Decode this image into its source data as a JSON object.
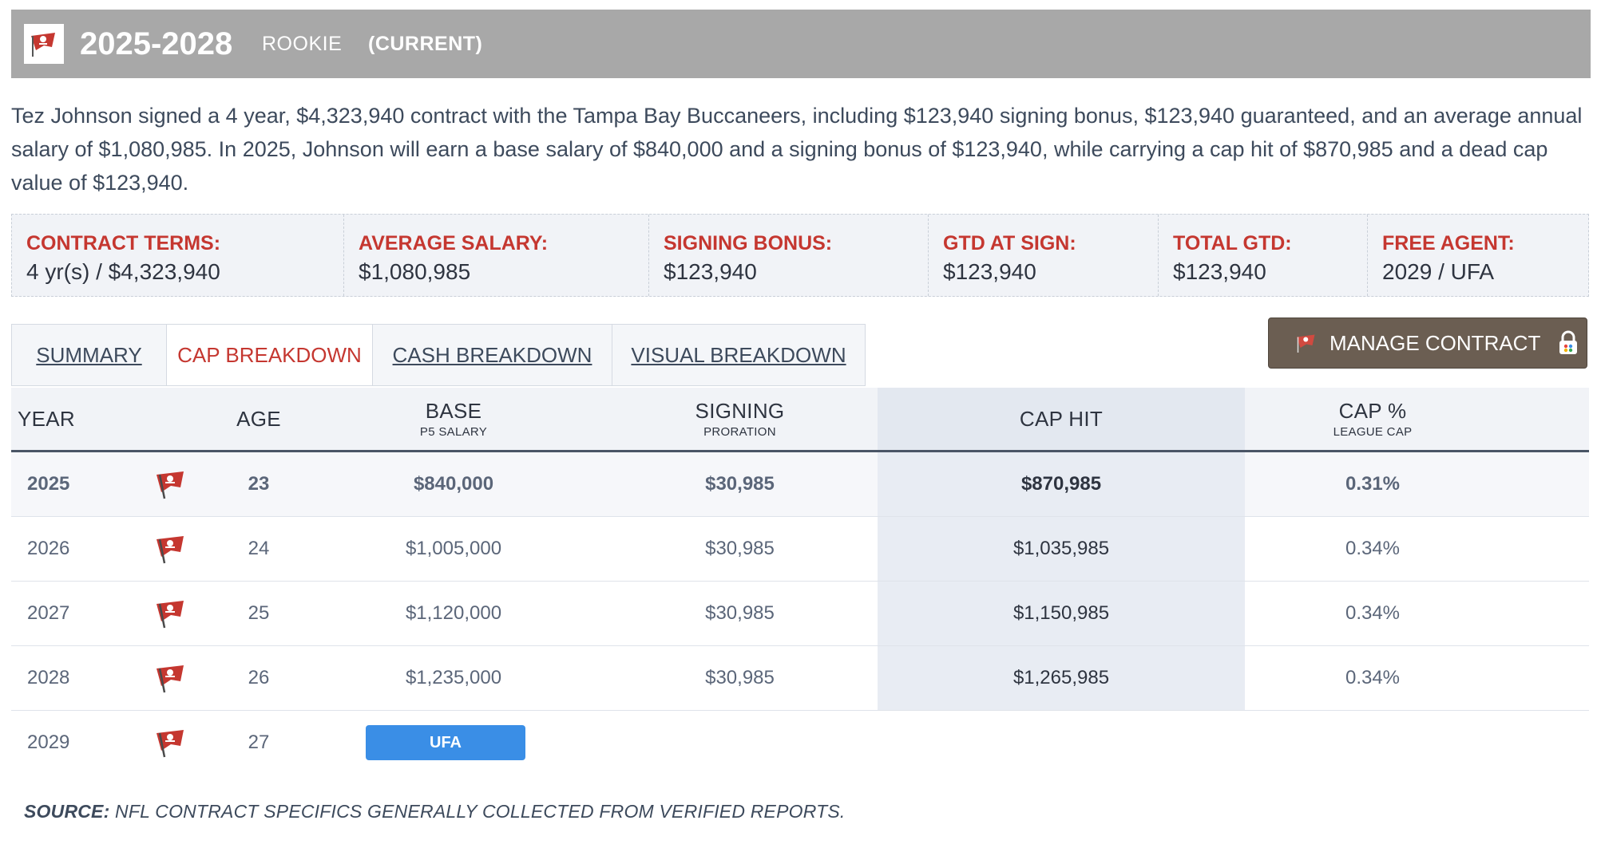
{
  "header": {
    "years": "2025-2028",
    "contract_type": "ROOKIE",
    "status": "(CURRENT)",
    "logo_icon": "buccaneers-flag-icon"
  },
  "description": "Tez Johnson signed a 4 year, $4,323,940 contract with the Tampa Bay Buccaneers, including $123,940 signing bonus, $123,940 guaranteed, and an average annual salary of $1,080,985. In 2025, Johnson will earn a base salary of $840,000 and a signing bonus of $123,940, while carrying a cap hit of $870,985 and a dead cap value of $123,940.",
  "terms": [
    {
      "label": "CONTRACT TERMS:",
      "value": "4 yr(s) / $4,323,940"
    },
    {
      "label": "AVERAGE SALARY:",
      "value": "$1,080,985"
    },
    {
      "label": "SIGNING BONUS:",
      "value": "$123,940"
    },
    {
      "label": "GTD AT SIGN:",
      "value": "$123,940"
    },
    {
      "label": "TOTAL GTD:",
      "value": "$123,940"
    },
    {
      "label": "FREE AGENT:",
      "value": "2029 / UFA"
    }
  ],
  "tabs": [
    {
      "label": "SUMMARY",
      "active": false
    },
    {
      "label": "CAP BREAKDOWN",
      "active": true
    },
    {
      "label": "CASH BREAKDOWN",
      "active": false
    },
    {
      "label": "VISUAL BREAKDOWN",
      "active": false
    }
  ],
  "manage_button": {
    "label": "MANAGE CONTRACT",
    "icon": "lock-icon"
  },
  "table": {
    "headers": {
      "year": "YEAR",
      "age": "AGE",
      "base": "BASE",
      "base_sub": "P5 SALARY",
      "signing": "SIGNING",
      "signing_sub": "PRORATION",
      "cap_hit": "CAP HIT",
      "cap_pct": "CAP %",
      "cap_pct_sub": "LEAGUE CAP"
    },
    "rows": [
      {
        "year": "2025",
        "age": "23",
        "base": "$840,000",
        "signing": "$30,985",
        "cap_hit": "$870,985",
        "cap_pct": "0.31%"
      },
      {
        "year": "2026",
        "age": "24",
        "base": "$1,005,000",
        "signing": "$30,985",
        "cap_hit": "$1,035,985",
        "cap_pct": "0.34%"
      },
      {
        "year": "2027",
        "age": "25",
        "base": "$1,120,000",
        "signing": "$30,985",
        "cap_hit": "$1,150,985",
        "cap_pct": "0.34%"
      },
      {
        "year": "2028",
        "age": "26",
        "base": "$1,235,000",
        "signing": "$30,985",
        "cap_hit": "$1,265,985",
        "cap_pct": "0.34%"
      }
    ],
    "fa_row": {
      "year": "2029",
      "age": "27",
      "badge": "UFA"
    }
  },
  "source": {
    "label": "SOURCE:",
    "text": " NFL CONTRACT SPECIFICS GENERALLY COLLECTED FROM VERIFIED REPORTS."
  },
  "colors": {
    "header_bg": "#a8a8a8",
    "accent_red": "#c53730",
    "button_brown": "#6b5e52",
    "badge_blue": "#3a8ee6"
  }
}
